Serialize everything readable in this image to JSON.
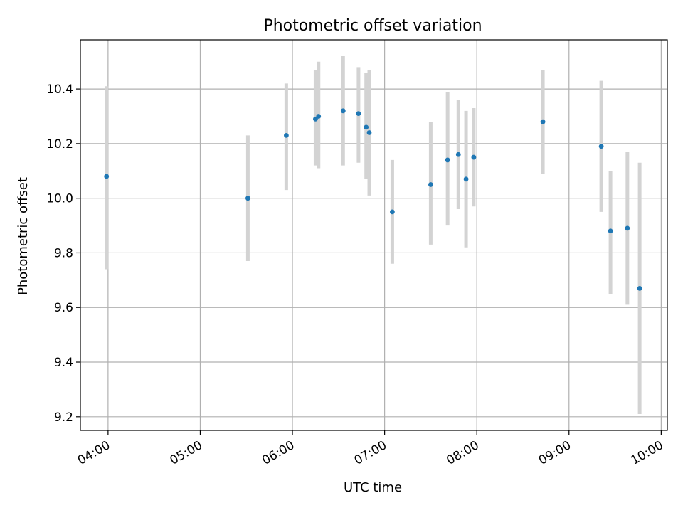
{
  "chart_data": {
    "type": "scatter",
    "title": "Photometric offset variation",
    "xlabel": "UTC time",
    "ylabel": "Photometric offset",
    "x_tick_labels": [
      "04:00",
      "05:00",
      "06:00",
      "07:00",
      "08:00",
      "09:00",
      "10:00"
    ],
    "x_ticks": [
      "04:00",
      "05:00",
      "06:00",
      "07:00",
      "08:00",
      "09:00",
      "10:00"
    ],
    "y_ticks": [
      9.2,
      9.4,
      9.6,
      9.8,
      10.0,
      10.2,
      10.4
    ],
    "y_tick_labels": [
      "9.2",
      "9.4",
      "9.6",
      "9.8",
      "10.0",
      "10.2",
      "10.4"
    ],
    "xlim": [
      "03:42",
      "10:04"
    ],
    "ylim": [
      9.15,
      10.58
    ],
    "grid": true,
    "colors": {
      "points": "#1f77b4",
      "errorbars": "#d3d3d3",
      "grid": "#b0b0b0"
    },
    "points": [
      {
        "x": "03:59",
        "y": 10.08,
        "lo": 9.74,
        "hi": 10.41
      },
      {
        "x": "05:31",
        "y": 10.0,
        "lo": 9.77,
        "hi": 10.23
      },
      {
        "x": "05:56",
        "y": 10.23,
        "lo": 10.03,
        "hi": 10.42
      },
      {
        "x": "06:15",
        "y": 10.29,
        "lo": 10.12,
        "hi": 10.47
      },
      {
        "x": "06:17",
        "y": 10.3,
        "lo": 10.11,
        "hi": 10.5
      },
      {
        "x": "06:33",
        "y": 10.32,
        "lo": 10.12,
        "hi": 10.52
      },
      {
        "x": "06:43",
        "y": 10.31,
        "lo": 10.13,
        "hi": 10.48
      },
      {
        "x": "06:48",
        "y": 10.26,
        "lo": 10.07,
        "hi": 10.46
      },
      {
        "x": "06:50",
        "y": 10.24,
        "lo": 10.01,
        "hi": 10.47
      },
      {
        "x": "07:05",
        "y": 9.95,
        "lo": 9.76,
        "hi": 10.14
      },
      {
        "x": "07:30",
        "y": 10.05,
        "lo": 9.83,
        "hi": 10.28
      },
      {
        "x": "07:41",
        "y": 10.14,
        "lo": 9.9,
        "hi": 10.39
      },
      {
        "x": "07:48",
        "y": 10.16,
        "lo": 9.96,
        "hi": 10.36
      },
      {
        "x": "07:53",
        "y": 10.07,
        "lo": 9.82,
        "hi": 10.32
      },
      {
        "x": "07:58",
        "y": 10.15,
        "lo": 9.97,
        "hi": 10.33
      },
      {
        "x": "08:43",
        "y": 10.28,
        "lo": 10.09,
        "hi": 10.47
      },
      {
        "x": "09:21",
        "y": 10.19,
        "lo": 9.95,
        "hi": 10.43
      },
      {
        "x": "09:27",
        "y": 9.88,
        "lo": 9.65,
        "hi": 10.1
      },
      {
        "x": "09:38",
        "y": 9.89,
        "lo": 9.61,
        "hi": 10.17
      },
      {
        "x": "09:46",
        "y": 9.67,
        "lo": 9.21,
        "hi": 10.13
      }
    ]
  }
}
